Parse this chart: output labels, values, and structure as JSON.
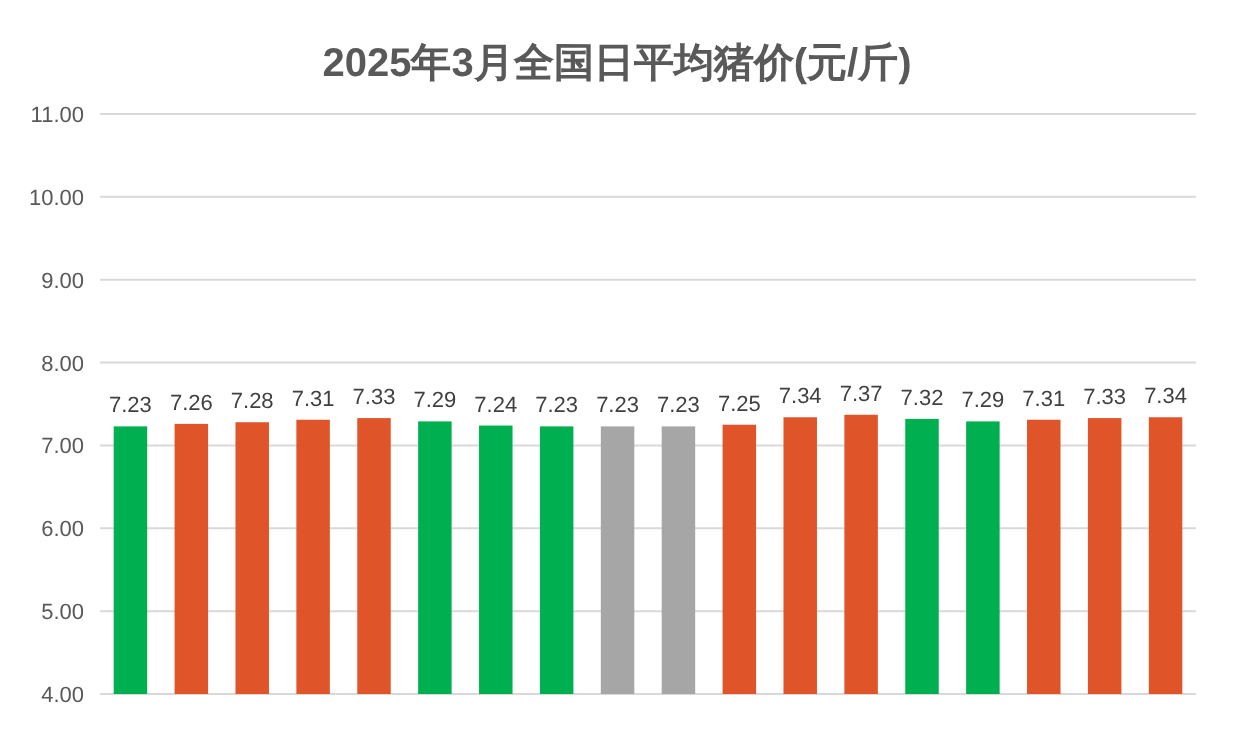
{
  "chart_data": {
    "type": "bar",
    "title": "2025年3月全国日平均猪价(元/斤)",
    "categories": [
      null,
      null,
      null,
      null,
      null,
      null,
      null,
      null,
      null,
      null,
      null,
      null,
      null,
      null,
      null,
      null,
      null,
      null
    ],
    "values": [
      7.23,
      7.26,
      7.28,
      7.31,
      7.33,
      7.29,
      7.24,
      7.23,
      7.23,
      7.23,
      7.25,
      7.34,
      7.37,
      7.32,
      7.29,
      7.31,
      7.33,
      7.34
    ],
    "colors": [
      "#00b050",
      "#e0542a",
      "#e0542a",
      "#e0542a",
      "#e0542a",
      "#00b050",
      "#00b050",
      "#00b050",
      "#a6a6a6",
      "#a6a6a6",
      "#e0542a",
      "#e0542a",
      "#e0542a",
      "#00b050",
      "#00b050",
      "#e0542a",
      "#e0542a",
      "#e0542a"
    ],
    "ylim": [
      4,
      11
    ],
    "yticks": [
      {
        "value": 4,
        "label": "4.00"
      },
      {
        "value": 5,
        "label": "5.00"
      },
      {
        "value": 6,
        "label": "6.00"
      },
      {
        "value": 7,
        "label": "7.00"
      },
      {
        "value": 8,
        "label": "8.00"
      },
      {
        "value": 9,
        "label": "9.00"
      },
      {
        "value": 10,
        "label": "10.00"
      },
      {
        "value": 11,
        "label": "11.00"
      }
    ],
    "grid": "y",
    "data_labels": true
  }
}
